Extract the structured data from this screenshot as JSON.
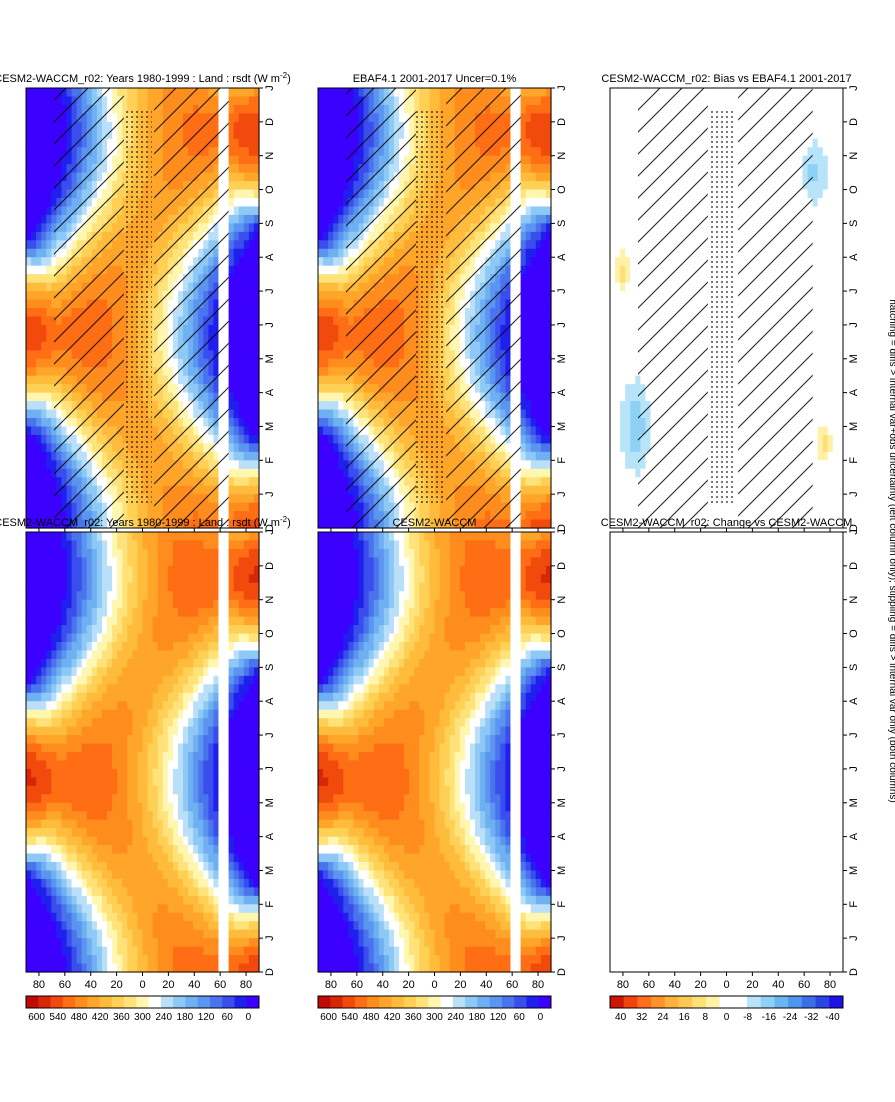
{
  "figure": {
    "footnote": "hatching = diffs > internal var+obs uncertainty (left column only); stippling = diffs > internal var only (both columns)"
  },
  "palettes": {
    "abs": [
      "#3b00ff",
      "#2020ee",
      "#3a4ded",
      "#4a74ee",
      "#5b95f0",
      "#6fb0f3",
      "#8ec9f6",
      "#b9e0f8",
      "#ffffff",
      "#fff6b0",
      "#ffe37a",
      "#ffd056",
      "#ffbc3c",
      "#ffa62a",
      "#ff8d1e",
      "#ff6e14",
      "#f24a0c",
      "#d92607",
      "#c00a04"
    ],
    "diff": [
      "#1e10e6",
      "#2a44e6",
      "#3a6fe8",
      "#4f95ec",
      "#6bb6f0",
      "#8fd1f5",
      "#b7e4f8",
      "#ffffff",
      "#ffffff",
      "#fff2a8",
      "#ffdf78",
      "#ffc855",
      "#ffb13c",
      "#ff932a",
      "#ff6f1b",
      "#f2420e",
      "#cc1505"
    ]
  },
  "chart_data": [
    {
      "id": "model-left",
      "type": "heatmap",
      "title": "CESM2-WACCM_r02: Years 1980-1999 : Land : rsdt (W m",
      "title_sup": "-2",
      "title_tail": ")",
      "field": "rsdt",
      "x_ticks": [
        "D",
        "J",
        "F",
        "M",
        "A",
        "M",
        "J",
        "J",
        "A",
        "S",
        "O",
        "N",
        "D",
        "J"
      ],
      "y_ticks": [
        "80",
        "60",
        "40",
        "20",
        "0",
        "20",
        "40",
        "60",
        "80"
      ],
      "ylim": [
        -90,
        90
      ],
      "masked_band": "60S-65S",
      "hatching": true,
      "stippling": true,
      "colorbar": {
        "labels": [
          "600",
          "540",
          "480",
          "420",
          "360",
          "300",
          "240",
          "180",
          "120",
          "60",
          "0"
        ],
        "range": [
          0,
          600
        ]
      }
    },
    {
      "id": "model-right",
      "type": "heatmap",
      "title": "CESM2-WACCM_r02: Years 1980-1999 : Land : rsdt (W m",
      "title_sup": "-2",
      "title_tail": ")",
      "field": "rsdt",
      "x_ticks": [
        "D",
        "J",
        "F",
        "M",
        "A",
        "M",
        "J",
        "J",
        "A",
        "S",
        "O",
        "N",
        "D",
        "J"
      ],
      "y_ticks": [
        "80",
        "60",
        "40",
        "20",
        "0",
        "20",
        "40",
        "60",
        "80"
      ],
      "ylim": [
        -90,
        90
      ],
      "masked_band": "60S-65S",
      "hatching": false,
      "stippling": false,
      "colorbar": {
        "labels": [
          "600",
          "540",
          "480",
          "420",
          "360",
          "300",
          "240",
          "180",
          "120",
          "60",
          "0"
        ],
        "range": [
          0,
          600
        ]
      }
    },
    {
      "id": "ref-left",
      "type": "heatmap",
      "title": "EBAF4.1 2001-2017 Uncer=0.1%",
      "field": "rsdt",
      "x_ticks": [
        "D",
        "J",
        "F",
        "M",
        "A",
        "M",
        "J",
        "J",
        "A",
        "S",
        "O",
        "N",
        "D",
        "J"
      ],
      "y_ticks": [
        "80",
        "60",
        "40",
        "20",
        "0",
        "20",
        "40",
        "60",
        "80"
      ],
      "ylim": [
        -90,
        90
      ],
      "masked_band": "60S-65S",
      "hatching": true,
      "stippling": true,
      "colorbar": {
        "labels": [
          "600",
          "540",
          "480",
          "420",
          "360",
          "300",
          "240",
          "180",
          "120",
          "60",
          "0"
        ],
        "range": [
          0,
          600
        ]
      }
    },
    {
      "id": "ref-right",
      "type": "heatmap",
      "title": "CESM2-WACCM",
      "field": "rsdt",
      "x_ticks": [
        "D",
        "J",
        "F",
        "M",
        "A",
        "M",
        "J",
        "J",
        "A",
        "S",
        "O",
        "N",
        "D",
        "J"
      ],
      "y_ticks": [
        "80",
        "60",
        "40",
        "20",
        "0",
        "20",
        "40",
        "60",
        "80"
      ],
      "ylim": [
        -90,
        90
      ],
      "masked_band": "60S-65S",
      "hatching": false,
      "stippling": false,
      "colorbar": {
        "labels": [
          "600",
          "540",
          "480",
          "420",
          "360",
          "300",
          "240",
          "180",
          "120",
          "60",
          "0"
        ],
        "range": [
          0,
          600
        ]
      }
    },
    {
      "id": "bias-left",
      "type": "heatmap",
      "title": "CESM2-WACCM_r02: Bias vs EBAF4.1 2001-2017",
      "field": "rsdt bias",
      "x_ticks": [
        "D",
        "J",
        "F",
        "M",
        "A",
        "M",
        "J",
        "J",
        "A",
        "S",
        "O",
        "N",
        "D",
        "J"
      ],
      "y_ticks": [
        "80",
        "60",
        "40",
        "20",
        "0",
        "20",
        "40",
        "60",
        "80"
      ],
      "ylim": [
        -90,
        90
      ],
      "hatching": true,
      "stippling": true,
      "colorbar": {
        "labels": [
          "40",
          "32",
          "24",
          "16",
          "8",
          "0",
          "-8",
          "-16",
          "-24",
          "-32",
          "-40"
        ],
        "range": [
          -40,
          40
        ]
      }
    },
    {
      "id": "change-right",
      "type": "heatmap",
      "title": "CESM2-WACCM_r02: Change vs CESM2-WACCM",
      "field": "rsdt change",
      "x_ticks": [
        "D",
        "J",
        "F",
        "M",
        "A",
        "M",
        "J",
        "J",
        "A",
        "S",
        "O",
        "N",
        "D",
        "J"
      ],
      "y_ticks": [
        "80",
        "60",
        "40",
        "20",
        "0",
        "20",
        "40",
        "60",
        "80"
      ],
      "ylim": [
        -90,
        90
      ],
      "empty": true,
      "hatching": false,
      "stippling": false,
      "colorbar": {
        "labels": [
          "40",
          "32",
          "24",
          "16",
          "8",
          "0",
          "-8",
          "-16",
          "-24",
          "-32",
          "-40"
        ],
        "range": [
          -40,
          40
        ]
      }
    }
  ]
}
